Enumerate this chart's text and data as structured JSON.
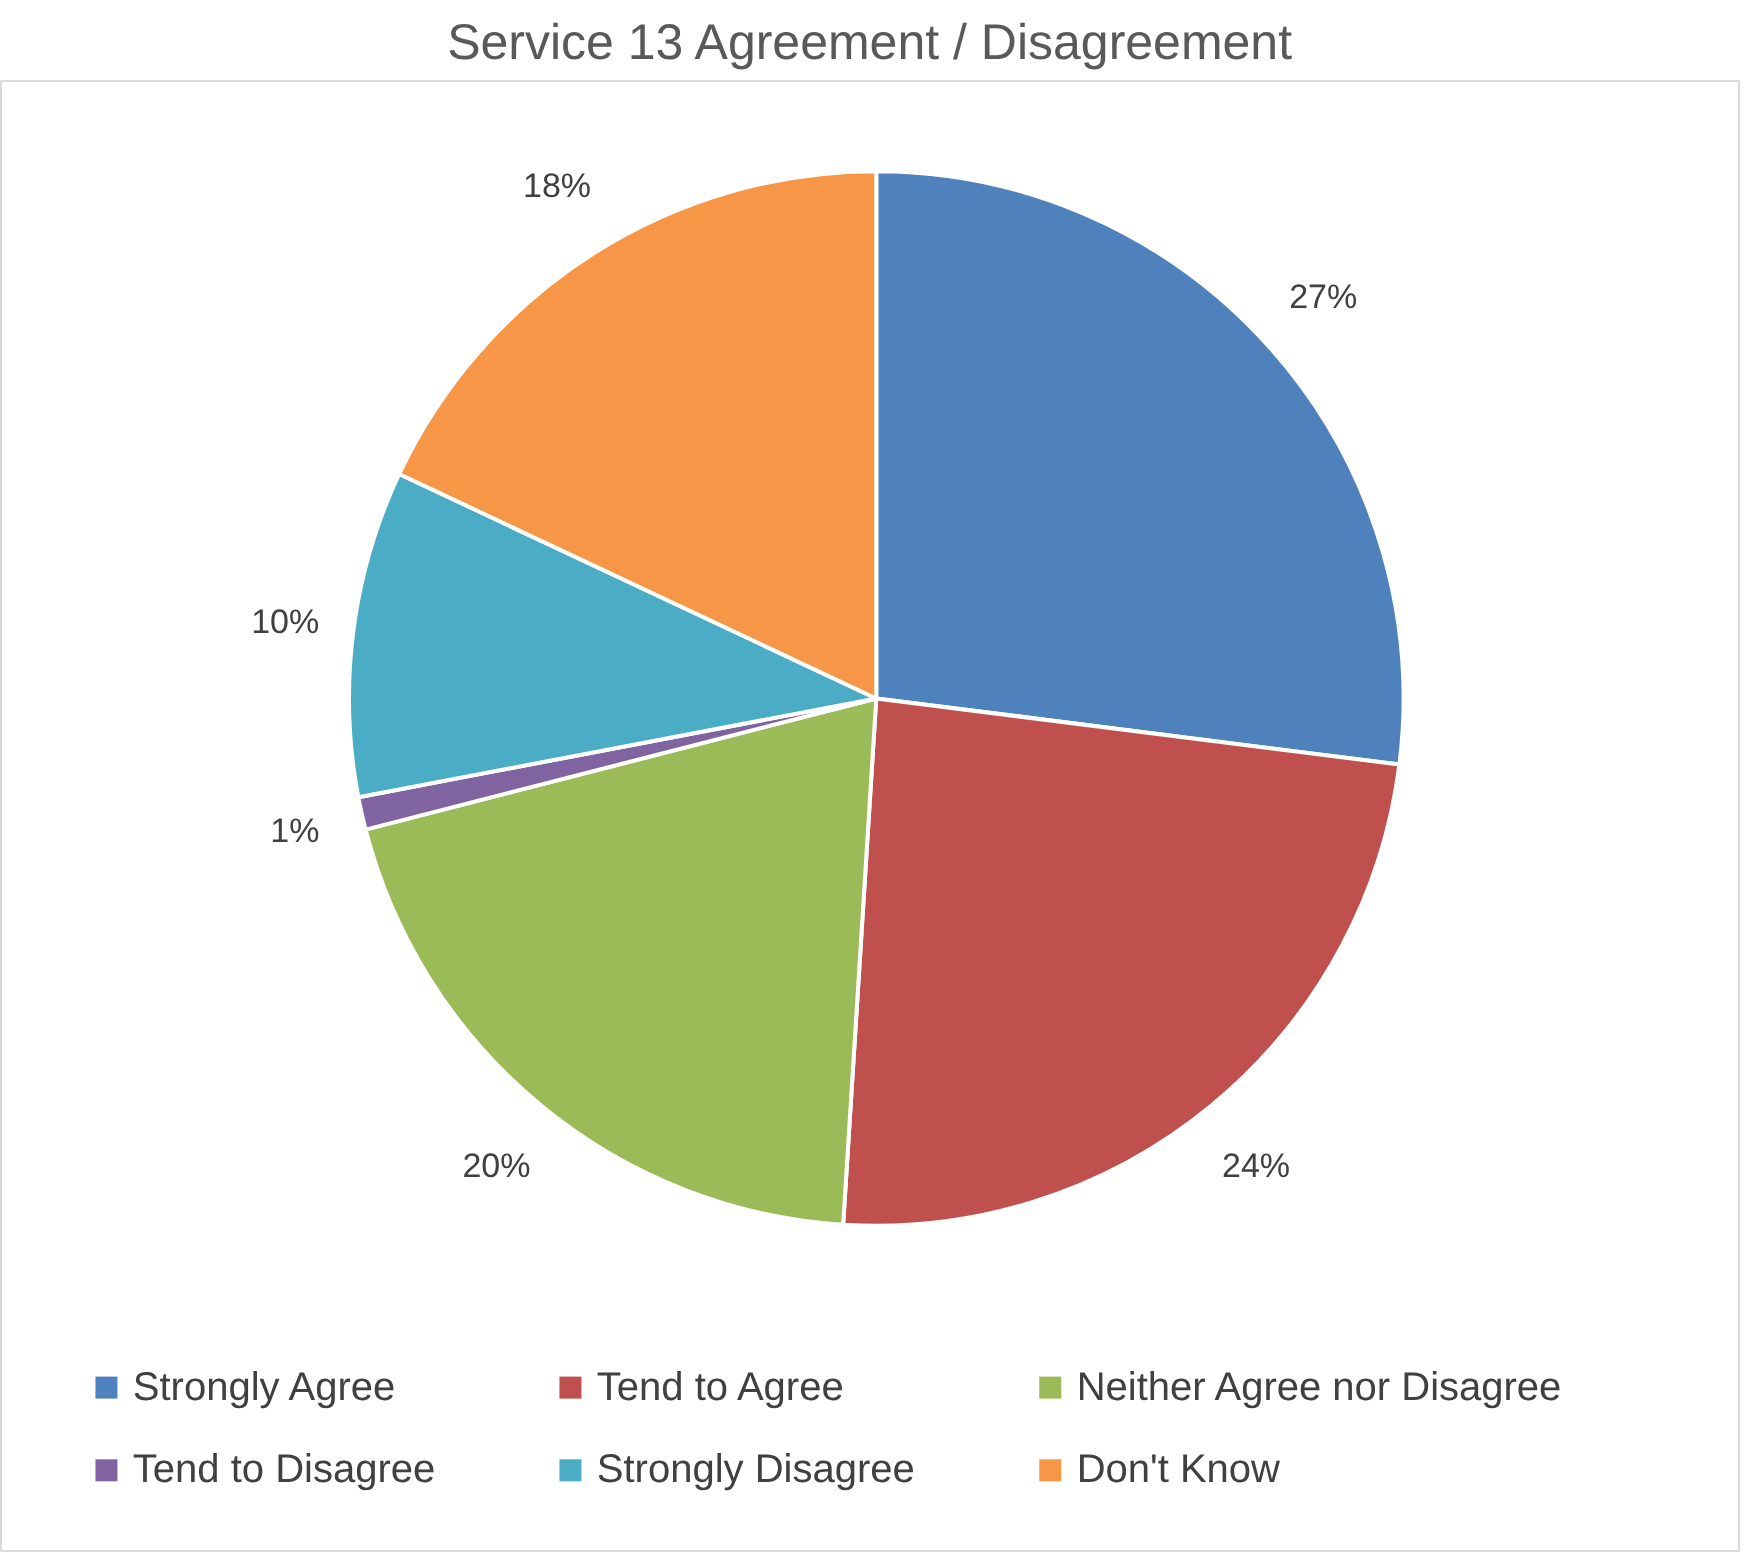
{
  "chart_data": {
    "type": "pie",
    "title": "Service 13 Agreement / Disagreement",
    "categories": [
      "Strongly Agree",
      "Tend to Agree",
      "Neither Agree nor Disagree",
      "Tend to Disagree",
      "Strongly Disagree",
      "Don't Know"
    ],
    "values": [
      27,
      24,
      20,
      1,
      10,
      18
    ],
    "colors": [
      "#4f81bd",
      "#c0504d",
      "#9bbb59",
      "#8064a2",
      "#4bacc6",
      "#f79646"
    ],
    "value_labels": [
      "27%",
      "24%",
      "20%",
      "1%",
      "10%",
      "18%"
    ],
    "legend": "bottom"
  }
}
